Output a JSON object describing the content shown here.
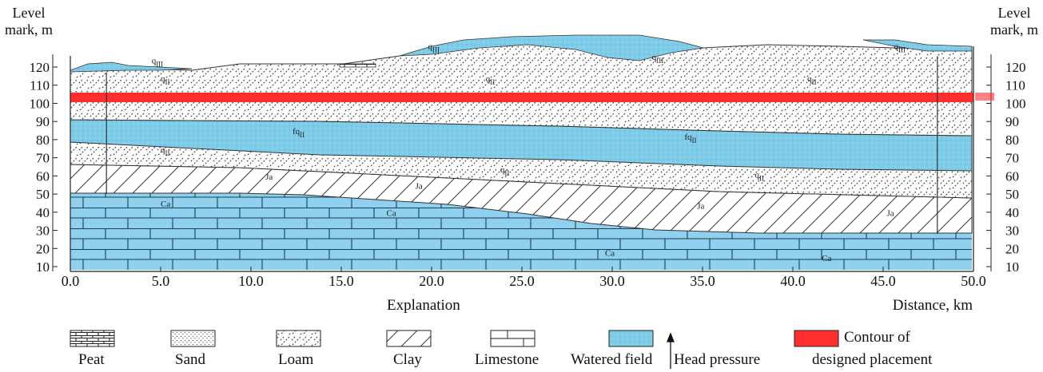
{
  "axes": {
    "y_label_left": [
      "Level",
      "mark, m"
    ],
    "y_label_right": [
      "Level",
      "mark, m"
    ],
    "x_label": "Distance, km",
    "y_ticks": [
      10,
      20,
      30,
      40,
      50,
      60,
      70,
      80,
      90,
      100,
      110,
      120
    ],
    "x_ticks": [
      "0.0",
      "5.0",
      "10.0",
      "15.0",
      "20.0",
      "25.0",
      "30.0",
      "35.0",
      "40.0",
      "45.0",
      "50.0"
    ],
    "y_range": [
      5,
      128
    ],
    "x_range": [
      0,
      50
    ]
  },
  "layer_labels": [
    {
      "text": "q",
      "sub": "III",
      "x": 4.5,
      "y": 122
    },
    {
      "text": "q",
      "sub": "II",
      "x": 5.0,
      "y": 112
    },
    {
      "text": "q",
      "sub": "III",
      "x": 19.8,
      "y": 130
    },
    {
      "text": "q",
      "sub": "II",
      "x": 23.0,
      "y": 112
    },
    {
      "text": "q",
      "sub": "III",
      "x": 32.2,
      "y": 124
    },
    {
      "text": "q",
      "sub": "II",
      "x": 40.8,
      "y": 112
    },
    {
      "text": "q",
      "sub": "III",
      "x": 45.6,
      "y": 130
    },
    {
      "text": "fq",
      "sub": "II",
      "x": 12.3,
      "y": 83
    },
    {
      "text": "fq",
      "sub": "II",
      "x": 34.0,
      "y": 80
    },
    {
      "text": "q",
      "sub": "II",
      "x": 5.0,
      "y": 73
    },
    {
      "text": "q",
      "sub": "II",
      "x": 23.8,
      "y": 62
    },
    {
      "text": "q",
      "sub": "II",
      "x": 37.9,
      "y": 59
    },
    {
      "text": "Ja",
      "sub": "",
      "x": 10.8,
      "y": 58
    },
    {
      "text": "Ja",
      "sub": "",
      "x": 19.1,
      "y": 53
    },
    {
      "text": "Ja",
      "sub": "",
      "x": 34.7,
      "y": 42
    },
    {
      "text": "Ja",
      "sub": "",
      "x": 45.2,
      "y": 38
    },
    {
      "text": "Ca",
      "sub": "",
      "x": 5.0,
      "y": 43
    },
    {
      "text": "Ca",
      "sub": "",
      "x": 17.5,
      "y": 38
    },
    {
      "text": "Ca",
      "sub": "",
      "x": 29.6,
      "y": 16
    },
    {
      "text": "Ca",
      "sub": "",
      "x": 41.6,
      "y": 13
    }
  ],
  "boreholes": [
    {
      "x": 2.0,
      "top": 117,
      "bottom": 50
    },
    {
      "x": 48.0,
      "top": 126,
      "bottom": 28
    }
  ],
  "legend": {
    "title": "Explanation",
    "items": [
      {
        "key": "peat",
        "label": "Peat"
      },
      {
        "key": "sand",
        "label": "Sand"
      },
      {
        "key": "loam",
        "label": "Loam"
      },
      {
        "key": "clay",
        "label": "Clay"
      },
      {
        "key": "limestone",
        "label": "Limestone"
      },
      {
        "key": "water",
        "label": "Watered field"
      },
      {
        "key": "head",
        "label": "Head pressure"
      },
      {
        "key": "contour",
        "label_lines": [
          "Contour of",
          "designed placement"
        ]
      }
    ]
  },
  "colors": {
    "water": "#7ecce8",
    "contour": "#ff2f2f",
    "limestone": "#8fd0ee",
    "line": "#222222"
  }
}
